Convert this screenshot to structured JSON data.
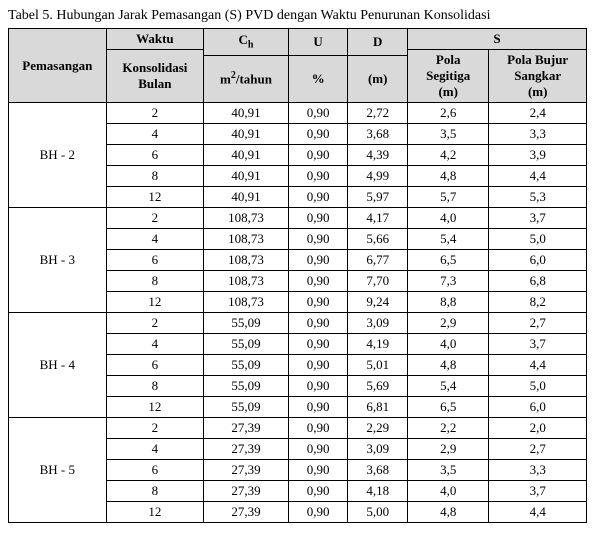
{
  "caption": "Tabel 5. Hubungan Jarak Pemasangan (S) PVD dengan Waktu Penurunan Konsolidasi",
  "headers": {
    "pemasangan": "Pemasangan",
    "waktu_top": "Waktu",
    "waktu_line1": "Konsolidasi",
    "waktu_line2": "Bulan",
    "ch_top_html": "C<sub class=\"sub\">h</sub>",
    "ch_unit_html": "m<sup class=\"sup\">2</sup>/tahun",
    "u_top": "U",
    "u_unit": "%",
    "d_top": "D",
    "d_unit": "(m)",
    "s_top": "S",
    "s_col1_l1": "Pola",
    "s_col1_l2": "Segitiga",
    "s_col1_l3": "(m)",
    "s_col2_l1": "Pola Bujur",
    "s_col2_l2": "Sangkar",
    "s_col2_l3": "(m)"
  },
  "groups": [
    {
      "name": "BH - 2",
      "rows": [
        {
          "w": "2",
          "ch": "40,91",
          "u": "0,90",
          "d": "2,72",
          "s1": "2,6",
          "s2": "2,4"
        },
        {
          "w": "4",
          "ch": "40,91",
          "u": "0,90",
          "d": "3,68",
          "s1": "3,5",
          "s2": "3,3"
        },
        {
          "w": "6",
          "ch": "40,91",
          "u": "0,90",
          "d": "4,39",
          "s1": "4,2",
          "s2": "3,9"
        },
        {
          "w": "8",
          "ch": "40,91",
          "u": "0,90",
          "d": "4,99",
          "s1": "4,8",
          "s2": "4,4"
        },
        {
          "w": "12",
          "ch": "40,91",
          "u": "0,90",
          "d": "5,97",
          "s1": "5,7",
          "s2": "5,3"
        }
      ]
    },
    {
      "name": "BH - 3",
      "rows": [
        {
          "w": "2",
          "ch": "108,73",
          "u": "0,90",
          "d": "4,17",
          "s1": "4,0",
          "s2": "3,7"
        },
        {
          "w": "4",
          "ch": "108,73",
          "u": "0,90",
          "d": "5,66",
          "s1": "5,4",
          "s2": "5,0"
        },
        {
          "w": "6",
          "ch": "108,73",
          "u": "0,90",
          "d": "6,77",
          "s1": "6,5",
          "s2": "6,0"
        },
        {
          "w": "8",
          "ch": "108,73",
          "u": "0,90",
          "d": "7,70",
          "s1": "7,3",
          "s2": "6,8"
        },
        {
          "w": "12",
          "ch": "108,73",
          "u": "0,90",
          "d": "9,24",
          "s1": "8,8",
          "s2": "8,2"
        }
      ]
    },
    {
      "name": "BH - 4",
      "rows": [
        {
          "w": "2",
          "ch": "55,09",
          "u": "0,90",
          "d": "3,09",
          "s1": "2,9",
          "s2": "2,7"
        },
        {
          "w": "4",
          "ch": "55,09",
          "u": "0,90",
          "d": "4,19",
          "s1": "4,0",
          "s2": "3,7"
        },
        {
          "w": "6",
          "ch": "55,09",
          "u": "0,90",
          "d": "5,01",
          "s1": "4,8",
          "s2": "4,4"
        },
        {
          "w": "8",
          "ch": "55,09",
          "u": "0,90",
          "d": "5,69",
          "s1": "5,4",
          "s2": "5,0"
        },
        {
          "w": "12",
          "ch": "55,09",
          "u": "0,90",
          "d": "6,81",
          "s1": "6,5",
          "s2": "6,0"
        }
      ]
    },
    {
      "name": "BH - 5",
      "rows": [
        {
          "w": "2",
          "ch": "27,39",
          "u": "0,90",
          "d": "2,29",
          "s1": "2,2",
          "s2": "2,0"
        },
        {
          "w": "4",
          "ch": "27,39",
          "u": "0,90",
          "d": "3,09",
          "s1": "2,9",
          "s2": "2,7"
        },
        {
          "w": "6",
          "ch": "27,39",
          "u": "0,90",
          "d": "3,68",
          "s1": "3,5",
          "s2": "3,3"
        },
        {
          "w": "8",
          "ch": "27,39",
          "u": "0,90",
          "d": "4,18",
          "s1": "4,0",
          "s2": "3,7"
        },
        {
          "w": "12",
          "ch": "27,39",
          "u": "0,90",
          "d": "5,00",
          "s1": "4,8",
          "s2": "4,4"
        }
      ]
    }
  ]
}
